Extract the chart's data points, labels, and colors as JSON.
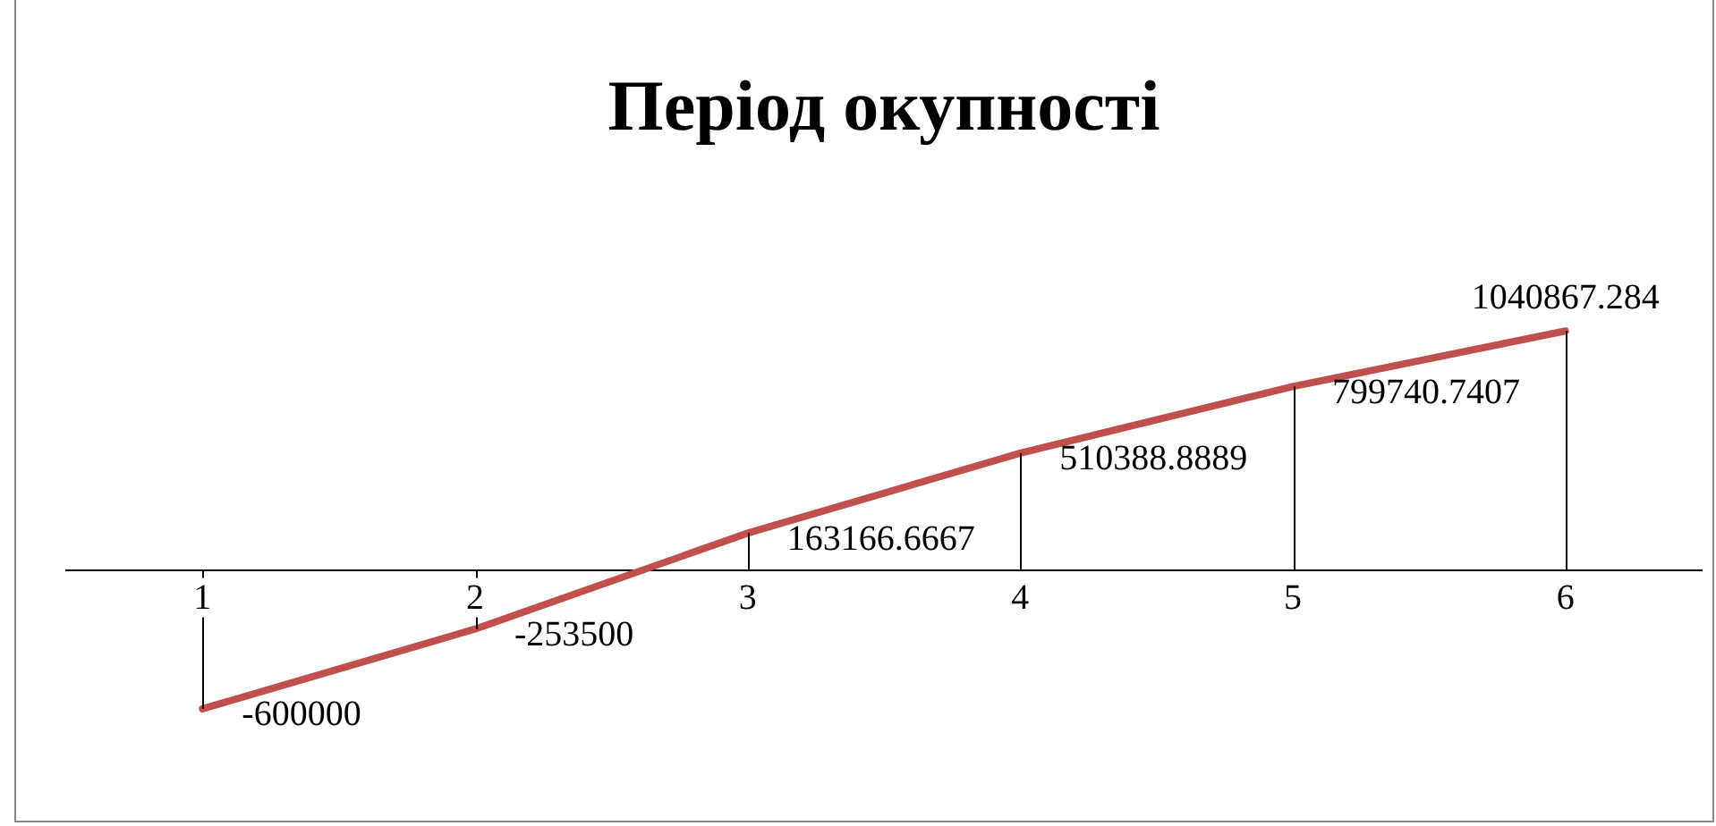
{
  "chart_data": {
    "type": "line",
    "title": "Період окупності",
    "categories": [
      "1",
      "2",
      "3",
      "4",
      "5",
      "6"
    ],
    "series": [
      {
        "color": "#c0504d",
        "values": [
          -600000,
          -253500,
          163166.6667,
          510388.8889,
          799740.7407,
          1040867.284
        ]
      }
    ],
    "data_labels": true,
    "legend": false,
    "grid": false,
    "marker": "none",
    "line_style": "solid",
    "tick_labels": "x"
  }
}
